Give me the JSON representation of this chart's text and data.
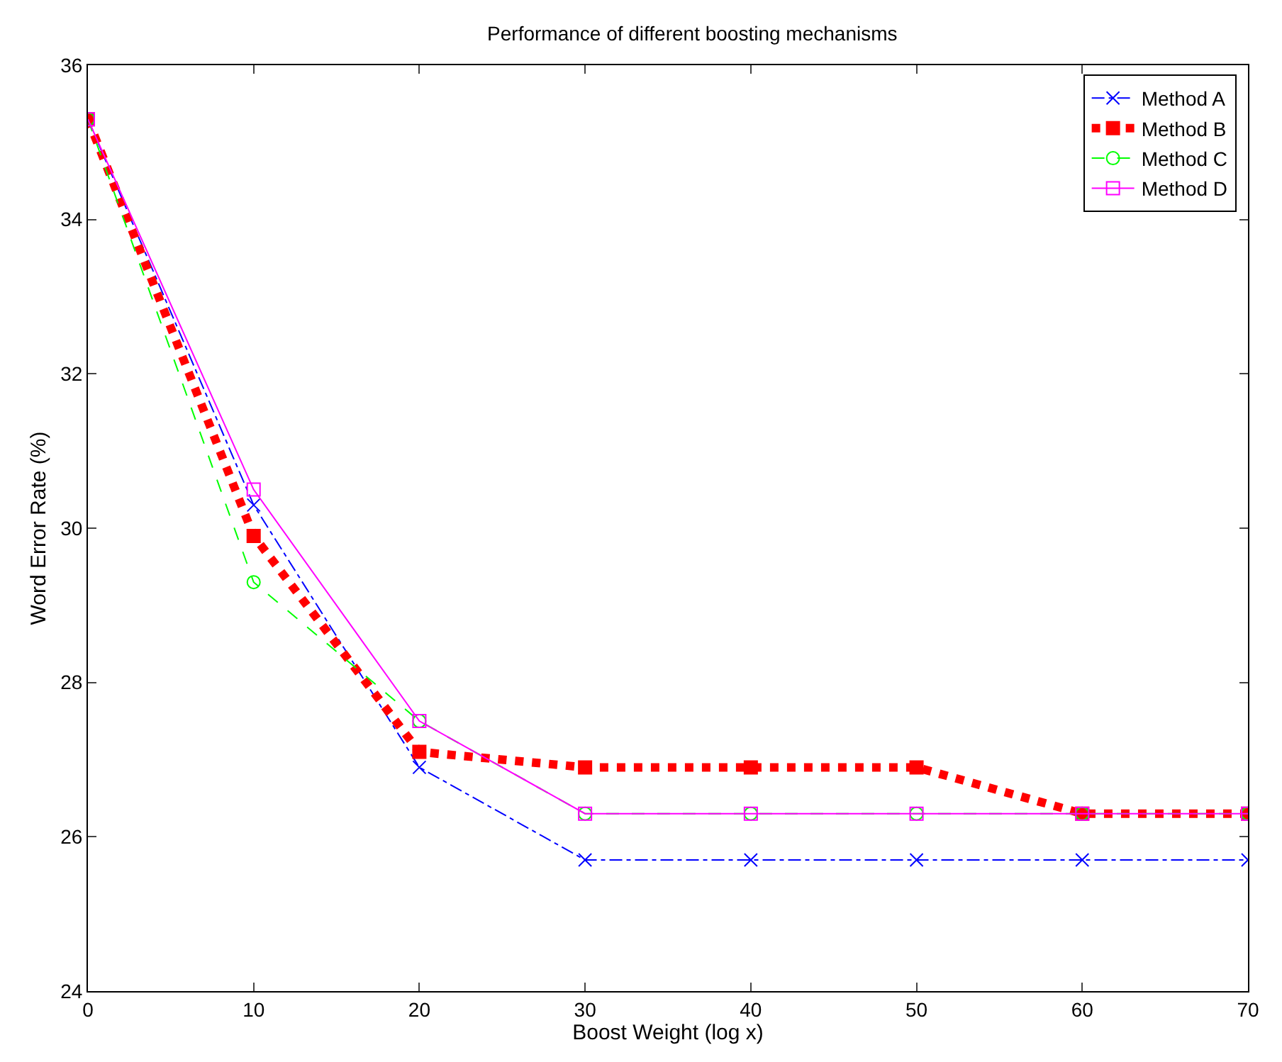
{
  "chart_data": {
    "type": "line",
    "title": "Performance of different boosting mechanisms",
    "xlabel": "Boost Weight (log x)",
    "ylabel": "Word Error Rate (%)",
    "x": [
      0,
      10,
      20,
      30,
      40,
      50,
      60,
      70
    ],
    "series": [
      {
        "name": "Method A",
        "color": "#0000ff",
        "marker": "cross",
        "line_style": "dashdot",
        "values": [
          35.3,
          30.3,
          26.9,
          25.7,
          25.7,
          25.7,
          25.7,
          25.7
        ]
      },
      {
        "name": "Method B",
        "color": "#ff0000",
        "marker": "square",
        "line_style": "dotted",
        "values": [
          35.3,
          29.9,
          27.1,
          26.9,
          26.9,
          26.9,
          26.3,
          26.3
        ]
      },
      {
        "name": "Method C",
        "color": "#00ff00",
        "marker": "circle-open",
        "line_style": "dashed",
        "values": [
          35.3,
          29.3,
          27.5,
          26.3,
          26.3,
          26.3,
          26.3,
          26.3
        ]
      },
      {
        "name": "Method D",
        "color": "#ff00ff",
        "marker": "square-open",
        "line_style": "solid",
        "values": [
          35.3,
          30.5,
          27.5,
          26.3,
          26.3,
          26.3,
          26.3,
          26.3
        ]
      }
    ],
    "xlim": [
      0,
      70
    ],
    "xticks": [
      0,
      10,
      20,
      30,
      40,
      50,
      60,
      70
    ],
    "ylim": [
      24,
      36
    ],
    "yticks": [
      24,
      26,
      28,
      30,
      32,
      34,
      36
    ],
    "legend": "top right"
  }
}
